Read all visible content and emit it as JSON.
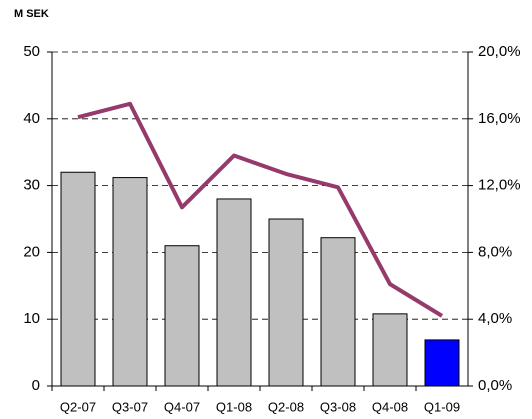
{
  "chart_data": {
    "type": "bar",
    "axis_title": "M SEK",
    "categories": [
      "Q2-07",
      "Q3-07",
      "Q4-07",
      "Q1-08",
      "Q2-08",
      "Q3-08",
      "Q4-08",
      "Q1-09"
    ],
    "series": [
      {
        "type": "bar",
        "colors": [
          "#c0c0c0",
          "#c0c0c0",
          "#c0c0c0",
          "#c0c0c0",
          "#c0c0c0",
          "#c0c0c0",
          "#c0c0c0",
          "#0000ff"
        ],
        "values": [
          32,
          31.2,
          21,
          28,
          25,
          22.2,
          10.8,
          6.9
        ]
      },
      {
        "type": "line",
        "axis": "y2",
        "color": "#953a6b",
        "values": [
          16.1,
          16.9,
          10.7,
          13.8,
          12.7,
          11.9,
          6.1,
          4.2
        ]
      }
    ],
    "ylim": [
      0,
      50
    ],
    "yticks": [
      0,
      10,
      20,
      30,
      40,
      50
    ],
    "y2lim": [
      0,
      20
    ],
    "y2ticks": [
      {
        "value": 0,
        "label": "0,0%"
      },
      {
        "value": 4,
        "label": "4,0%"
      },
      {
        "value": 8,
        "label": "8,0%"
      },
      {
        "value": 12,
        "label": "12,0%"
      },
      {
        "value": 16,
        "label": "16,0%"
      },
      {
        "value": 20,
        "label": "20,0%"
      }
    ],
    "grid": true
  }
}
